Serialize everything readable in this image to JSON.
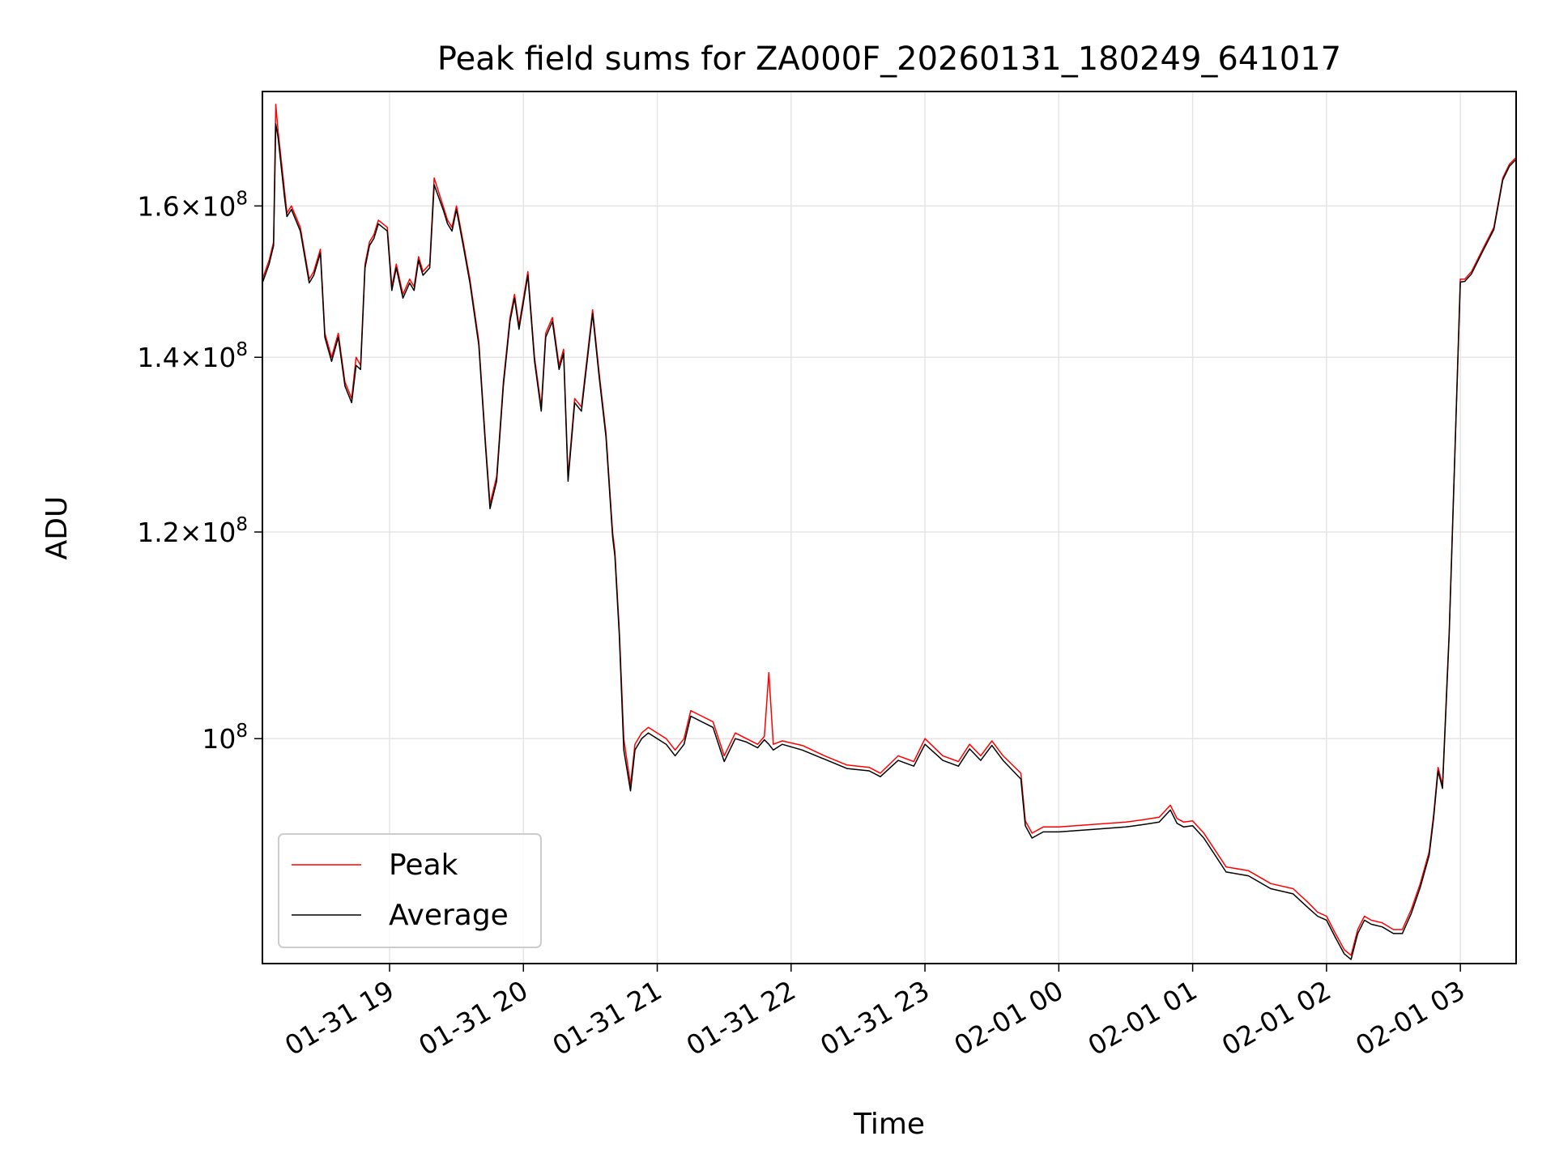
{
  "chart_data": {
    "type": "line",
    "title": "Peak field sums for ZA000F_20260131_180249_641017",
    "xlabel": "Time",
    "ylabel": "ADU",
    "xlim": [
      "2026-01-31 18:03",
      "2026-02-01 03:25"
    ],
    "ylim": [
      82000000,
      177000000
    ],
    "yscale": "log",
    "grid": true,
    "legend_position": "lower-left",
    "x_ticks": [
      "01-31 19",
      "01-31 20",
      "01-31 21",
      "01-31 22",
      "01-31 23",
      "02-01 00",
      "02-01 01",
      "02-01 02",
      "02-01 03"
    ],
    "y_ticks": [
      {
        "value": 160000000,
        "mantissa": "1.6",
        "exponent": "8"
      },
      {
        "value": 140000000,
        "mantissa": "1.4",
        "exponent": "8"
      },
      {
        "value": 120000000,
        "mantissa": "1.2",
        "exponent": "8"
      },
      {
        "value": 100000000,
        "mantissa": "",
        "exponent": "8"
      }
    ],
    "y_tick_base": "10",
    "y_tick_times": "×",
    "series": [
      {
        "name": "Peak",
        "color": "#ff0000",
        "x": [
          "2026-01-31 18:03",
          "2026-01-31 18:06",
          "2026-01-31 18:08",
          "2026-01-31 18:09",
          "2026-01-31 18:10",
          "2026-01-31 18:13",
          "2026-01-31 18:14",
          "2026-01-31 18:16",
          "2026-01-31 18:20",
          "2026-01-31 18:24",
          "2026-01-31 18:26",
          "2026-01-31 18:29",
          "2026-01-31 18:31",
          "2026-01-31 18:34",
          "2026-01-31 18:37",
          "2026-01-31 18:40",
          "2026-01-31 18:43",
          "2026-01-31 18:45",
          "2026-01-31 18:47",
          "2026-01-31 18:49",
          "2026-01-31 18:51",
          "2026-01-31 18:53",
          "2026-01-31 18:55",
          "2026-01-31 18:59",
          "2026-01-31 19:01",
          "2026-01-31 19:03",
          "2026-01-31 19:06",
          "2026-01-31 19:09",
          "2026-01-31 19:11",
          "2026-01-31 19:13",
          "2026-01-31 19:15",
          "2026-01-31 19:18",
          "2026-01-31 19:20",
          "2026-01-31 19:24",
          "2026-01-31 19:26",
          "2026-01-31 19:28",
          "2026-01-31 19:30",
          "2026-01-31 19:33",
          "2026-01-31 19:36",
          "2026-01-31 19:40",
          "2026-01-31 19:43",
          "2026-01-31 19:45",
          "2026-01-31 19:48",
          "2026-01-31 19:51",
          "2026-01-31 19:54",
          "2026-01-31 19:56",
          "2026-01-31 19:58",
          "2026-01-31 20:02",
          "2026-01-31 20:05",
          "2026-01-31 20:08",
          "2026-01-31 20:10",
          "2026-01-31 20:13",
          "2026-01-31 20:16",
          "2026-01-31 20:18",
          "2026-01-31 20:20",
          "2026-01-31 20:23",
          "2026-01-31 20:26",
          "2026-01-31 20:29",
          "2026-01-31 20:31",
          "2026-01-31 20:34",
          "2026-01-31 20:37",
          "2026-01-31 20:40",
          "2026-01-31 20:41",
          "2026-01-31 20:43",
          "2026-01-31 20:45",
          "2026-01-31 20:48",
          "2026-01-31 20:50",
          "2026-01-31 20:53",
          "2026-01-31 20:56",
          "2026-01-31 21:00",
          "2026-01-31 21:04",
          "2026-01-31 21:08",
          "2026-01-31 21:12",
          "2026-01-31 21:15",
          "2026-01-31 21:20",
          "2026-01-31 21:25",
          "2026-01-31 21:30",
          "2026-01-31 21:35",
          "2026-01-31 21:40",
          "2026-01-31 21:45",
          "2026-01-31 21:48",
          "2026-01-31 21:50",
          "2026-01-31 21:52",
          "2026-01-31 21:56",
          "2026-01-31 22:05",
          "2026-01-31 22:15",
          "2026-01-31 22:25",
          "2026-01-31 22:35",
          "2026-01-31 22:40",
          "2026-01-31 22:48",
          "2026-01-31 22:55",
          "2026-01-31 23:00",
          "2026-01-31 23:08",
          "2026-01-31 23:15",
          "2026-01-31 23:20",
          "2026-01-31 23:25",
          "2026-01-31 23:30",
          "2026-01-31 23:35",
          "2026-01-31 23:43",
          "2026-01-31 23:45",
          "2026-01-31 23:48",
          "2026-01-31 23:53",
          "2026-02-01 00:00",
          "2026-02-01 00:15",
          "2026-02-01 00:30",
          "2026-02-01 00:38",
          "2026-02-01 00:45",
          "2026-02-01 00:50",
          "2026-02-01 00:53",
          "2026-02-01 00:56",
          "2026-02-01 01:00",
          "2026-02-01 01:05",
          "2026-02-01 01:15",
          "2026-02-01 01:25",
          "2026-02-01 01:35",
          "2026-02-01 01:45",
          "2026-02-01 01:52",
          "2026-02-01 01:56",
          "2026-02-01 02:00",
          "2026-02-01 02:04",
          "2026-02-01 02:08",
          "2026-02-01 02:11",
          "2026-02-01 02:14",
          "2026-02-01 02:17",
          "2026-02-01 02:20",
          "2026-02-01 02:25",
          "2026-02-01 02:30",
          "2026-02-01 02:34",
          "2026-02-01 02:38",
          "2026-02-01 02:42",
          "2026-02-01 02:46",
          "2026-02-01 02:48",
          "2026-02-01 02:50",
          "2026-02-01 02:52",
          "2026-02-01 02:55",
          "2026-02-01 03:00",
          "2026-02-01 03:02",
          "2026-02-01 03:05",
          "2026-02-01 03:10",
          "2026-02-01 03:15",
          "2026-02-01 03:19",
          "2026-02-01 03:22",
          "2026-02-01 03:25"
        ],
        "y": [
          150000000,
          152500000,
          155000000,
          175000000,
          171000000,
          162000000,
          159000000,
          160000000,
          157000000,
          150000000,
          151000000,
          154000000,
          143000000,
          140000000,
          143000000,
          137000000,
          135000000,
          140000000,
          139000000,
          152000000,
          155000000,
          156000000,
          158000000,
          157000000,
          149000000,
          152000000,
          148000000,
          150000000,
          149000000,
          153000000,
          151000000,
          152000000,
          164000000,
          160000000,
          158000000,
          157000000,
          160000000,
          155000000,
          150000000,
          142000000,
          130000000,
          123000000,
          126000000,
          137000000,
          145000000,
          148000000,
          144000000,
          151000000,
          140000000,
          134000000,
          143000000,
          145000000,
          139000000,
          141000000,
          126000000,
          135000000,
          134000000,
          141000000,
          146000000,
          138000000,
          131000000,
          120000000,
          118000000,
          110000000,
          100000000,
          96000000,
          99500000,
          100500000,
          101000000,
          100500000,
          100000000,
          99000000,
          100000000,
          102500000,
          102000000,
          101500000,
          98500000,
          100500000,
          100000000,
          99500000,
          100200000,
          106000000,
          99500000,
          99800000,
          99400000,
          98500000,
          97700000,
          97500000,
          97000000,
          98500000,
          98000000,
          100000000,
          98500000,
          98000000,
          99500000,
          98500000,
          99800000,
          98500000,
          97000000,
          93000000,
          92000000,
          92500000,
          92500000,
          92700000,
          92900000,
          93100000,
          93300000,
          94300000,
          93200000,
          92900000,
          93000000,
          92000000,
          89300000,
          89000000,
          88000000,
          87600000,
          86500000,
          85800000,
          85500000,
          84200000,
          83000000,
          82600000,
          84500000,
          85500000,
          85200000,
          85000000,
          84500000,
          84500000,
          86000000,
          88000000,
          90500000,
          93500000,
          97500000,
          96000000,
          110000000,
          150000000,
          150000000,
          151000000,
          154000000,
          157000000,
          164000000,
          166000000,
          167000000
        ]
      },
      {
        "name": "Average",
        "color": "#000000",
        "x": [
          "2026-01-31 18:03",
          "2026-01-31 18:06",
          "2026-01-31 18:08",
          "2026-01-31 18:09",
          "2026-01-31 18:10",
          "2026-01-31 18:13",
          "2026-01-31 18:14",
          "2026-01-31 18:16",
          "2026-01-31 18:20",
          "2026-01-31 18:24",
          "2026-01-31 18:26",
          "2026-01-31 18:29",
          "2026-01-31 18:31",
          "2026-01-31 18:34",
          "2026-01-31 18:37",
          "2026-01-31 18:40",
          "2026-01-31 18:43",
          "2026-01-31 18:45",
          "2026-01-31 18:47",
          "2026-01-31 18:49",
          "2026-01-31 18:51",
          "2026-01-31 18:53",
          "2026-01-31 18:55",
          "2026-01-31 18:59",
          "2026-01-31 19:01",
          "2026-01-31 19:03",
          "2026-01-31 19:06",
          "2026-01-31 19:09",
          "2026-01-31 19:11",
          "2026-01-31 19:13",
          "2026-01-31 19:15",
          "2026-01-31 19:18",
          "2026-01-31 19:20",
          "2026-01-31 19:24",
          "2026-01-31 19:26",
          "2026-01-31 19:28",
          "2026-01-31 19:30",
          "2026-01-31 19:33",
          "2026-01-31 19:36",
          "2026-01-31 19:40",
          "2026-01-31 19:43",
          "2026-01-31 19:45",
          "2026-01-31 19:48",
          "2026-01-31 19:51",
          "2026-01-31 19:54",
          "2026-01-31 19:56",
          "2026-01-31 19:58",
          "2026-01-31 20:02",
          "2026-01-31 20:05",
          "2026-01-31 20:08",
          "2026-01-31 20:10",
          "2026-01-31 20:13",
          "2026-01-31 20:16",
          "2026-01-31 20:18",
          "2026-01-31 20:20",
          "2026-01-31 20:23",
          "2026-01-31 20:26",
          "2026-01-31 20:29",
          "2026-01-31 20:31",
          "2026-01-31 20:34",
          "2026-01-31 20:37",
          "2026-01-31 20:40",
          "2026-01-31 20:41",
          "2026-01-31 20:43",
          "2026-01-31 20:45",
          "2026-01-31 20:48",
          "2026-01-31 20:50",
          "2026-01-31 20:53",
          "2026-01-31 20:56",
          "2026-01-31 21:00",
          "2026-01-31 21:04",
          "2026-01-31 21:08",
          "2026-01-31 21:12",
          "2026-01-31 21:15",
          "2026-01-31 21:20",
          "2026-01-31 21:25",
          "2026-01-31 21:30",
          "2026-01-31 21:35",
          "2026-01-31 21:40",
          "2026-01-31 21:45",
          "2026-01-31 21:48",
          "2026-01-31 21:50",
          "2026-01-31 21:52",
          "2026-01-31 21:56",
          "2026-01-31 22:05",
          "2026-01-31 22:15",
          "2026-01-31 22:25",
          "2026-01-31 22:35",
          "2026-01-31 22:40",
          "2026-01-31 22:48",
          "2026-01-31 22:55",
          "2026-01-31 23:00",
          "2026-01-31 23:08",
          "2026-01-31 23:15",
          "2026-01-31 23:20",
          "2026-01-31 23:25",
          "2026-01-31 23:30",
          "2026-01-31 23:35",
          "2026-01-31 23:43",
          "2026-01-31 23:45",
          "2026-01-31 23:48",
          "2026-01-31 23:53",
          "2026-02-01 00:00",
          "2026-02-01 00:15",
          "2026-02-01 00:30",
          "2026-02-01 00:38",
          "2026-02-01 00:45",
          "2026-02-01 00:50",
          "2026-02-01 00:53",
          "2026-02-01 00:56",
          "2026-02-01 01:00",
          "2026-02-01 01:05",
          "2026-02-01 01:15",
          "2026-02-01 01:25",
          "2026-02-01 01:35",
          "2026-02-01 01:45",
          "2026-02-01 01:52",
          "2026-02-01 01:56",
          "2026-02-01 02:00",
          "2026-02-01 02:04",
          "2026-02-01 02:08",
          "2026-02-01 02:11",
          "2026-02-01 02:14",
          "2026-02-01 02:17",
          "2026-02-01 02:20",
          "2026-02-01 02:25",
          "2026-02-01 02:30",
          "2026-02-01 02:34",
          "2026-02-01 02:38",
          "2026-02-01 02:42",
          "2026-02-01 02:46",
          "2026-02-01 02:48",
          "2026-02-01 02:50",
          "2026-02-01 02:52",
          "2026-02-01 02:55",
          "2026-02-01 03:00",
          "2026-02-01 03:02",
          "2026-02-01 03:05",
          "2026-02-01 03:10",
          "2026-02-01 03:15",
          "2026-02-01 03:19",
          "2026-02-01 03:22",
          "2026-02-01 03:25"
        ],
        "y": [
          149500000,
          152000000,
          154500000,
          172000000,
          170000000,
          161000000,
          158500000,
          159500000,
          156500000,
          149500000,
          150500000,
          153500000,
          142500000,
          139500000,
          142500000,
          136500000,
          134500000,
          139000000,
          138500000,
          151500000,
          154500000,
          155500000,
          157500000,
          156500000,
          148500000,
          151500000,
          147500000,
          149500000,
          148500000,
          152500000,
          150500000,
          151500000,
          163000000,
          159500000,
          157500000,
          156500000,
          159500000,
          154500000,
          149500000,
          141500000,
          129500000,
          122500000,
          125500000,
          136500000,
          144500000,
          147500000,
          143500000,
          150500000,
          139500000,
          133500000,
          142500000,
          144500000,
          138500000,
          140500000,
          125500000,
          134500000,
          133500000,
          140500000,
          145500000,
          137500000,
          130500000,
          119500000,
          117500000,
          109500000,
          99000000,
          95500000,
          99000000,
          100000000,
          100500000,
          100000000,
          99500000,
          98500000,
          99500000,
          102000000,
          101500000,
          101000000,
          98000000,
          100000000,
          99700000,
          99200000,
          99900000,
          99500000,
          99000000,
          99500000,
          99000000,
          98200000,
          97400000,
          97200000,
          96700000,
          98100000,
          97600000,
          99500000,
          98100000,
          97600000,
          99100000,
          98100000,
          99400000,
          98100000,
          96500000,
          92600000,
          91600000,
          92100000,
          92100000,
          92300000,
          92500000,
          92700000,
          92900000,
          93900000,
          92800000,
          92500000,
          92600000,
          91600000,
          88900000,
          88600000,
          87600000,
          87200000,
          86100000,
          85500000,
          85200000,
          83900000,
          82700000,
          82300000,
          84200000,
          85200000,
          84900000,
          84700000,
          84200000,
          84200000,
          85700000,
          87700000,
          90200000,
          93200000,
          97200000,
          95700000,
          109700000,
          149600000,
          149700000,
          150700000,
          153700000,
          156700000,
          163700000,
          165700000,
          166700000
        ]
      }
    ]
  }
}
